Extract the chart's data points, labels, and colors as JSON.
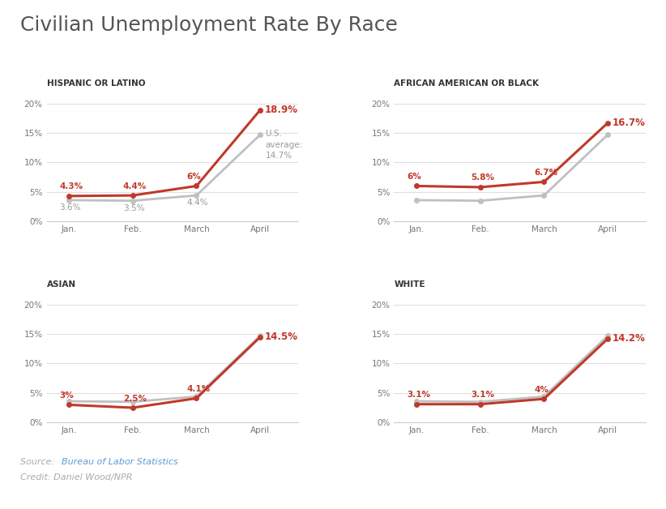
{
  "title": "Civilian Unemployment Rate By Race",
  "title_color": "#555555",
  "title_fontsize": 18,
  "background_color": "#ffffff",
  "months": [
    "Jan.",
    "Feb.",
    "March",
    "April"
  ],
  "line_color_race": "#c0392b",
  "line_color_avg": "#c0c0c0",
  "source_text": "Source: ",
  "source_link": "Bureau of Labor Statistics",
  "credit_text": "Credit: Daniel Wood/NPR",
  "source_color": "#aaaaaa",
  "source_link_color": "#5b9bd5",
  "subplots": [
    {
      "title": "HISPANIC OR LATINO",
      "race_values": [
        4.3,
        4.4,
        6.0,
        18.9
      ],
      "avg_values": [
        3.6,
        3.5,
        4.4,
        14.7
      ],
      "race_labels": [
        "4.3%",
        "4.4%",
        "6%",
        "18.9%"
      ],
      "avg_labels": [
        "3.6%",
        "3.5%",
        "4.4%",
        ""
      ],
      "show_avg_full": true,
      "avg_annotation": "U.S.\naverage:\n14.7%",
      "ylim": [
        0,
        22
      ]
    },
    {
      "title": "AFRICAN AMERICAN OR BLACK",
      "race_values": [
        6.0,
        5.8,
        6.7,
        16.7
      ],
      "avg_values": [
        3.6,
        3.5,
        4.4,
        14.7
      ],
      "race_labels": [
        "6%",
        "5.8%",
        "6.7%",
        "16.7%"
      ],
      "avg_labels": [
        "",
        "",
        "",
        ""
      ],
      "show_avg_full": true,
      "avg_annotation": "",
      "ylim": [
        0,
        22
      ]
    },
    {
      "title": "ASIAN",
      "race_values": [
        3.0,
        2.5,
        4.1,
        14.5
      ],
      "avg_values": [
        3.6,
        3.5,
        4.4,
        14.7
      ],
      "race_labels": [
        "3%",
        "2.5%",
        "4.1%",
        "14.5%"
      ],
      "avg_labels": [
        "",
        "",
        "",
        ""
      ],
      "show_avg_full": true,
      "avg_annotation": "",
      "ylim": [
        0,
        22
      ]
    },
    {
      "title": "WHITE",
      "race_values": [
        3.1,
        3.1,
        4.0,
        14.2
      ],
      "avg_values": [
        3.6,
        3.5,
        4.4,
        14.7
      ],
      "race_labels": [
        "3.1%",
        "3.1%",
        "4%",
        "14.2%"
      ],
      "avg_labels": [
        "",
        "",
        "",
        ""
      ],
      "show_avg_full": true,
      "avg_annotation": "",
      "ylim": [
        0,
        22
      ]
    }
  ]
}
